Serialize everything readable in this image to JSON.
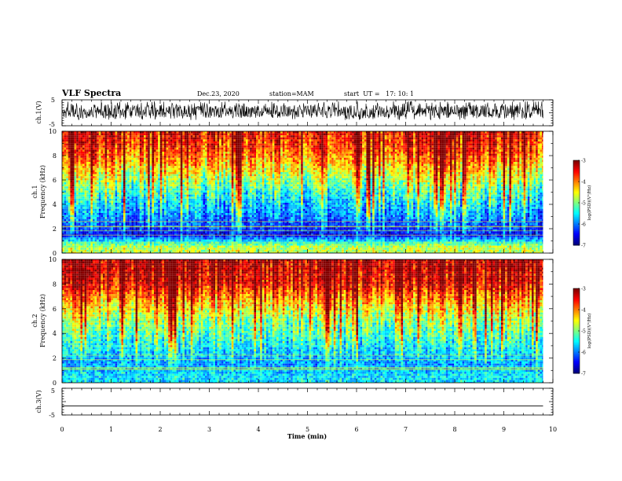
{
  "header": {
    "title": "VLF Spectra",
    "date": "Dec.23, 2020",
    "station": "station=MAM",
    "start": "start  UT =   17: 10: 1"
  },
  "chart_data": [
    {
      "type": "line",
      "panel": "ch1-waveform",
      "ylabel": "ch.1(V)",
      "ylim": [
        -5,
        5
      ],
      "y_ticks": [
        "5",
        "-5"
      ],
      "xlim": [
        0,
        10
      ],
      "approx_range_V": [
        -2,
        3
      ]
    },
    {
      "type": "heatmap",
      "panel": "ch1-spectrogram",
      "ylabel_channel": "ch.1",
      "ylabel": "Frequency (kHz)",
      "ylim": [
        0,
        10
      ],
      "y_ticks": [
        "0",
        "2",
        "4",
        "6",
        "8",
        "10"
      ],
      "xlim": [
        0,
        10
      ],
      "data_extent_min": 9.8,
      "colorbar": {
        "label": "log(PSD)(V²/Hz)",
        "range": [
          -7,
          -3
        ],
        "ticks": [
          "-3",
          "-4",
          "-5",
          "-6",
          "-7"
        ]
      },
      "approx_log_psd_profile": [
        {
          "freq_khz": 0.5,
          "log_psd": -4.8
        },
        {
          "freq_khz": 1.5,
          "log_psd": -6.5
        },
        {
          "freq_khz": 3.0,
          "log_psd": -6.0
        },
        {
          "freq_khz": 5.0,
          "log_psd": -5.3
        },
        {
          "freq_khz": 6.5,
          "log_psd": -4.6
        },
        {
          "freq_khz": 8.0,
          "log_psd": -3.9
        },
        {
          "freq_khz": 9.5,
          "log_psd": -3.5
        }
      ]
    },
    {
      "type": "heatmap",
      "panel": "ch2-spectrogram",
      "ylabel_channel": "ch.2",
      "ylabel": "Frequency (kHz)",
      "ylim": [
        0,
        10
      ],
      "y_ticks": [
        "0",
        "2",
        "4",
        "6",
        "8",
        "10"
      ],
      "xlim": [
        0,
        10
      ],
      "data_extent_min": 9.8,
      "colorbar": {
        "label": "log(PSD)(V²/Hz)",
        "range": [
          -7,
          -3
        ],
        "ticks": [
          "-3",
          "-4",
          "-5",
          "-6",
          "-7"
        ]
      },
      "approx_log_psd_profile": [
        {
          "freq_khz": 0.5,
          "log_psd": -5.6
        },
        {
          "freq_khz": 1.5,
          "log_psd": -5.9
        },
        {
          "freq_khz": 3.0,
          "log_psd": -5.5
        },
        {
          "freq_khz": 5.0,
          "log_psd": -4.9
        },
        {
          "freq_khz": 6.5,
          "log_psd": -4.2
        },
        {
          "freq_khz": 8.0,
          "log_psd": -3.4
        },
        {
          "freq_khz": 9.5,
          "log_psd": -3.2
        }
      ]
    },
    {
      "type": "line",
      "panel": "ch3-waveform",
      "ylabel": "ch.3(V)",
      "ylim": [
        -5,
        5
      ],
      "y_ticks": [
        "5",
        "-5"
      ],
      "xlim": [
        0,
        10
      ],
      "values_constant_V": -1.6
    }
  ],
  "x_axis": {
    "label": "Time (min)",
    "ticks": [
      "0",
      "1",
      "2",
      "3",
      "4",
      "5",
      "6",
      "7",
      "8",
      "9",
      "10"
    ]
  }
}
